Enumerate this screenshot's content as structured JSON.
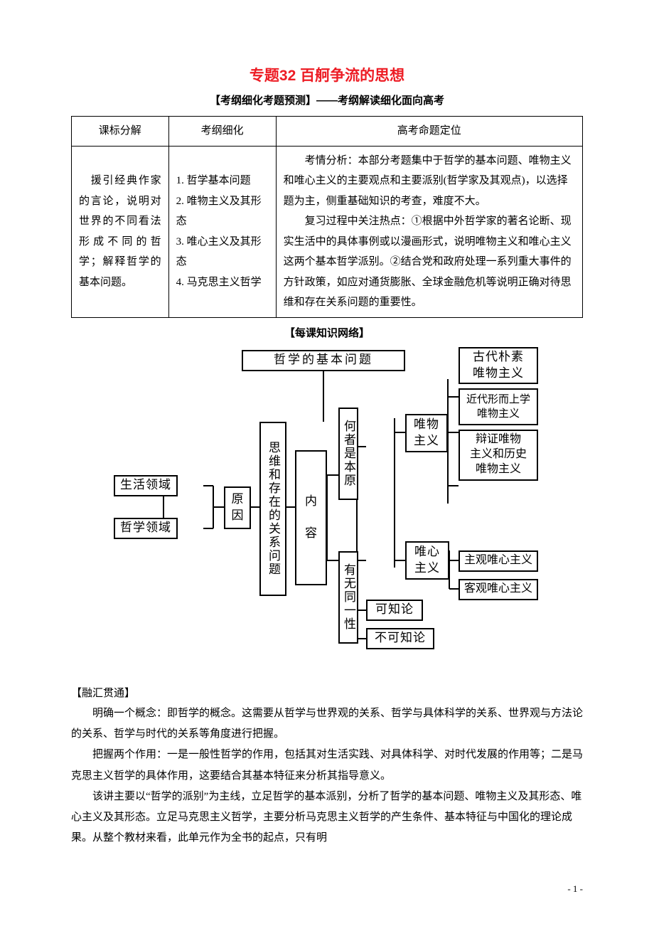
{
  "title": "专题32 百舸争流的思想",
  "subtitle": "【考纲细化考题预测】——考纲解读细化面向高考",
  "table": {
    "headers": [
      "课标分解",
      "考纲细化",
      "高考命题定位"
    ],
    "col1": "　援引经典作家的言论，说明对世界的不同看法形成不同的哲学；解释哲学的基本问题。",
    "col2": "1. 哲学基本问题\n2. 唯物主义及其形态\n3. 唯心主义及其形态\n4. 马克思主义哲学",
    "col3a": "考情分析：本部分考题集中于哲学的基本问题、唯物主义和唯心主义的主要观点和主要派别(哲学家及其观点)，以选择题为主，侧重基础知识的考查，难度不大。",
    "col3b": "复习过程中关注热点：①根据中外哲学家的著名论断、现实生活中的具体事例或以漫画形式，说明唯物主义和唯心主义这两个基本哲学派别。②结合党和政府处理一系列重大事件的方针政策，如应对通货膨胀、全球金融危机等说明正确对待思维和存在关系问题的重要性。"
  },
  "section_network": "【每课知识网络】",
  "diagram": {
    "n1": "哲学的基本问题",
    "n2": "生活领域",
    "n3": "哲学领域",
    "n4": "原\n因",
    "n5": "思维和存在的关系问题",
    "n6": "内\n\n容",
    "n7": "何者是本原",
    "n8": "有无同一性",
    "n9": "唯物\n主义",
    "n10": "唯心\n主义",
    "n11": "可知论",
    "n12": "不可知论",
    "n13": "古代朴素\n唯物主义",
    "n14": "近代形而上学\n唯物主义",
    "n15": "辩证唯物\n主义和历史\n唯物主义",
    "n16": "主观唯心主义",
    "n17": "客观唯心主义",
    "edges_color": "#000000",
    "edges": [
      [
        295,
        30,
        295,
        105
      ],
      [
        70,
        195,
        90,
        195
      ],
      [
        70,
        255,
        90,
        255
      ],
      [
        70,
        195,
        70,
        255
      ],
      [
        126,
        195,
        140,
        195
      ],
      [
        126,
        255,
        140,
        255
      ],
      [
        140,
        195,
        140,
        255
      ],
      [
        140,
        225,
        155,
        225
      ],
      [
        193,
        225,
        205,
        225
      ],
      [
        216,
        105,
        216,
        225
      ],
      [
        243,
        225,
        255,
        225
      ],
      [
        300,
        180,
        316,
        180
      ],
      [
        300,
        300,
        316,
        300
      ],
      [
        300,
        180,
        300,
        300
      ],
      [
        342,
        120,
        342,
        410
      ],
      [
        342,
        140,
        355,
        140
      ],
      [
        342,
        300,
        355,
        300
      ],
      [
        342,
        370,
        355,
        370
      ],
      [
        342,
        410,
        355,
        410
      ],
      [
        395,
        100,
        395,
        310
      ],
      [
        395,
        120,
        410,
        120
      ],
      [
        395,
        300,
        410,
        300
      ],
      [
        470,
        45,
        470,
        220
      ],
      [
        470,
        70,
        485,
        70
      ],
      [
        470,
        120,
        485,
        120
      ],
      [
        470,
        195,
        485,
        195
      ],
      [
        472,
        286,
        472,
        340
      ],
      [
        472,
        300,
        485,
        300
      ],
      [
        472,
        340,
        485,
        340
      ]
    ],
    "fontsize": 17
  },
  "section_merge": "【融汇贯通】",
  "body": {
    "p1": "明确一个概念：即哲学的概念。这需要从哲学与世界观的关系、哲学与具体科学的关系、世界观与方法论的关系、哲学与时代的关系等角度进行把握。",
    "p2": "把握两个作用：一是一般性哲学的作用，包括其对生活实践、对具体科学、对时代发展的作用等；二是马克思主义哲学的具体作用，这要结合其基本特征来分析其指导意义。",
    "p3": "该讲主要以“哲学的派别”为主线，立足哲学的基本派别，分析了哲学的基本问题、唯物主义及其形态、唯心主义及其形态。立足马克思主义哲学，主要分析马克思主义哲学的产生条件、基本特征与中国化的理论成果。从整个教材来看，此单元作为全书的起点，只有明"
  },
  "pagenum": "- 1 -",
  "colors": {
    "title": "#ed1c24",
    "text": "#000000",
    "border": "#000000",
    "bg": "#ffffff"
  }
}
